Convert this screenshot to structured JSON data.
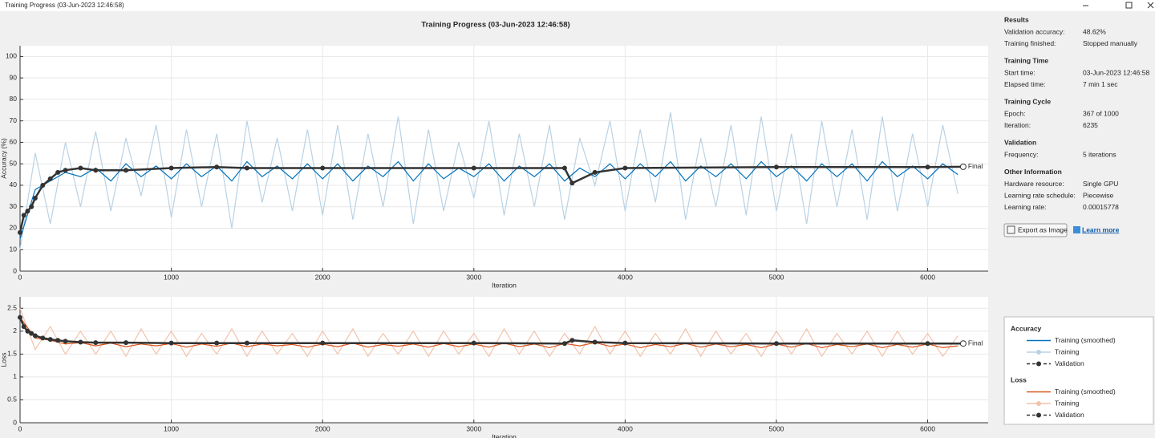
{
  "window": {
    "title": "Training Progress (03-Jun-2023 12:46:58)"
  },
  "header": {
    "title": "Training Progress (03-Jun-2023 12:46:58)"
  },
  "chart_data": [
    {
      "type": "line",
      "xlabel": "Iteration",
      "ylabel": "Accuracy (%)",
      "annotation": "Final",
      "xlim": [
        0,
        6400
      ],
      "xticks": [
        0,
        1000,
        2000,
        3000,
        4000,
        5000,
        6000
      ],
      "ylim": [
        0,
        105
      ],
      "yticks": [
        0,
        10,
        20,
        30,
        40,
        50,
        60,
        70,
        80,
        90,
        100
      ],
      "grid": true,
      "series": [
        {
          "name": "Training",
          "color": "#b9d2e4",
          "x": [
            0,
            100,
            200,
            300,
            400,
            500,
            600,
            700,
            800,
            900,
            1000,
            1100,
            1200,
            1300,
            1400,
            1500,
            1600,
            1700,
            1800,
            1900,
            2000,
            2100,
            2200,
            2300,
            2400,
            2500,
            2600,
            2700,
            2800,
            2900,
            3000,
            3100,
            3200,
            3300,
            3400,
            3500,
            3600,
            3700,
            3800,
            3900,
            4000,
            4100,
            4200,
            4300,
            4400,
            4500,
            4600,
            4700,
            4800,
            4900,
            5000,
            5100,
            5200,
            5300,
            5400,
            5500,
            5600,
            5700,
            5800,
            5900,
            6000,
            6100,
            6200
          ],
          "values": [
            10,
            55,
            22,
            60,
            30,
            65,
            28,
            62,
            35,
            68,
            25,
            66,
            30,
            64,
            20,
            70,
            32,
            62,
            28,
            66,
            26,
            68,
            24,
            64,
            30,
            72,
            22,
            66,
            28,
            60,
            34,
            70,
            26,
            64,
            30,
            68,
            24,
            62,
            40,
            70,
            28,
            66,
            32,
            74,
            24,
            62,
            30,
            68,
            26,
            72,
            28,
            64,
            22,
            70,
            30,
            66,
            24,
            72,
            28,
            64,
            30,
            68,
            36
          ]
        },
        {
          "name": "Training (smoothed)",
          "color": "#0072bd",
          "x": [
            0,
            100,
            200,
            300,
            400,
            500,
            600,
            700,
            800,
            900,
            1000,
            1100,
            1200,
            1300,
            1400,
            1500,
            1600,
            1700,
            1800,
            1900,
            2000,
            2100,
            2200,
            2300,
            2400,
            2500,
            2600,
            2700,
            2800,
            2900,
            3000,
            3100,
            3200,
            3300,
            3400,
            3500,
            3600,
            3700,
            3800,
            3900,
            4000,
            4100,
            4200,
            4300,
            4400,
            4500,
            4600,
            4700,
            4800,
            4900,
            5000,
            5100,
            5200,
            5300,
            5400,
            5500,
            5600,
            5700,
            5800,
            5900,
            6000,
            6100,
            6200
          ],
          "values": [
            15,
            38,
            42,
            46,
            44,
            48,
            42,
            50,
            44,
            49,
            43,
            50,
            44,
            49,
            42,
            51,
            44,
            49,
            43,
            50,
            43,
            50,
            42,
            49,
            44,
            51,
            42,
            50,
            43,
            48,
            44,
            50,
            42,
            49,
            44,
            50,
            42,
            48,
            44,
            50,
            43,
            50,
            44,
            51,
            42,
            49,
            44,
            50,
            43,
            51,
            44,
            49,
            42,
            50,
            44,
            50,
            42,
            51,
            44,
            49,
            43,
            50,
            45
          ]
        },
        {
          "name": "Validation",
          "color": "#333333",
          "marker": "o",
          "x": [
            0,
            25,
            50,
            75,
            100,
            150,
            200,
            250,
            300,
            400,
            500,
            700,
            1000,
            1300,
            1500,
            2000,
            3000,
            3600,
            3650,
            3800,
            4000,
            5000,
            6000,
            6235
          ],
          "values": [
            18,
            26,
            28,
            30,
            34,
            40,
            43,
            46,
            47,
            48,
            47,
            47,
            48,
            48.5,
            48,
            48,
            48,
            48,
            41,
            46,
            48,
            48.5,
            48.5,
            48.62
          ]
        }
      ]
    },
    {
      "type": "line",
      "xlabel": "Iteration",
      "ylabel": "Loss",
      "annotation": "Final",
      "xlim": [
        0,
        6400
      ],
      "xticks": [
        0,
        1000,
        2000,
        3000,
        4000,
        5000,
        6000
      ],
      "ylim": [
        0,
        2.75
      ],
      "yticks": [
        0,
        0.5,
        1,
        1.5,
        2,
        2.5
      ],
      "grid": true,
      "series": [
        {
          "name": "Training",
          "color": "#f2c3ad",
          "x": [
            0,
            100,
            200,
            300,
            400,
            500,
            600,
            700,
            800,
            900,
            1000,
            1100,
            1200,
            1300,
            1400,
            1500,
            1600,
            1700,
            1800,
            1900,
            2000,
            2100,
            2200,
            2300,
            2400,
            2500,
            2600,
            2700,
            2800,
            2900,
            3000,
            3100,
            3200,
            3300,
            3400,
            3500,
            3600,
            3700,
            3800,
            3900,
            4000,
            4100,
            4200,
            4300,
            4400,
            4500,
            4600,
            4700,
            4800,
            4900,
            5000,
            5100,
            5200,
            5300,
            5400,
            5500,
            5600,
            5700,
            5800,
            5900,
            6000,
            6100,
            6200
          ],
          "values": [
            2.5,
            1.6,
            2.1,
            1.5,
            2.0,
            1.5,
            2.0,
            1.45,
            2.05,
            1.5,
            2.0,
            1.45,
            1.95,
            1.5,
            2.05,
            1.45,
            2.0,
            1.5,
            1.95,
            1.45,
            2.0,
            1.5,
            2.05,
            1.45,
            1.95,
            1.5,
            2.0,
            1.45,
            2.0,
            1.5,
            1.95,
            1.45,
            2.05,
            1.5,
            2.0,
            1.45,
            1.95,
            1.5,
            2.1,
            1.5,
            2.0,
            1.45,
            1.95,
            1.5,
            2.05,
            1.45,
            2.0,
            1.5,
            1.95,
            1.45,
            2.0,
            1.5,
            2.05,
            1.45,
            1.95,
            1.5,
            2.0,
            1.45,
            2.0,
            1.5,
            1.95,
            1.45,
            1.9
          ]
        },
        {
          "name": "Training (smoothed)",
          "color": "#d95319",
          "x": [
            0,
            100,
            200,
            300,
            400,
            500,
            600,
            700,
            800,
            900,
            1000,
            1100,
            1200,
            1300,
            1400,
            1500,
            1600,
            1700,
            1800,
            1900,
            2000,
            2100,
            2200,
            2300,
            2400,
            2500,
            2600,
            2700,
            2800,
            2900,
            3000,
            3100,
            3200,
            3300,
            3400,
            3500,
            3600,
            3700,
            3800,
            3900,
            4000,
            4100,
            4200,
            4300,
            4400,
            4500,
            4600,
            4700,
            4800,
            4900,
            5000,
            5100,
            5200,
            5300,
            5400,
            5500,
            5600,
            5700,
            5800,
            5900,
            6000,
            6100,
            6200
          ],
          "values": [
            2.3,
            1.85,
            1.8,
            1.72,
            1.75,
            1.68,
            1.74,
            1.66,
            1.72,
            1.68,
            1.73,
            1.65,
            1.72,
            1.67,
            1.74,
            1.66,
            1.72,
            1.68,
            1.71,
            1.65,
            1.72,
            1.66,
            1.74,
            1.65,
            1.71,
            1.67,
            1.72,
            1.65,
            1.73,
            1.66,
            1.72,
            1.65,
            1.74,
            1.66,
            1.72,
            1.64,
            1.73,
            1.68,
            1.75,
            1.67,
            1.72,
            1.64,
            1.71,
            1.66,
            1.73,
            1.65,
            1.72,
            1.66,
            1.71,
            1.64,
            1.72,
            1.65,
            1.73,
            1.64,
            1.71,
            1.66,
            1.72,
            1.64,
            1.71,
            1.65,
            1.72,
            1.64,
            1.68
          ]
        },
        {
          "name": "Validation",
          "color": "#333333",
          "marker": "o",
          "x": [
            0,
            25,
            50,
            75,
            100,
            150,
            200,
            250,
            300,
            400,
            500,
            700,
            1000,
            1300,
            1500,
            2000,
            3000,
            3600,
            3650,
            3800,
            4000,
            5000,
            6000,
            6235
          ],
          "values": [
            2.3,
            2.1,
            2.0,
            1.95,
            1.9,
            1.85,
            1.82,
            1.8,
            1.78,
            1.76,
            1.75,
            1.75,
            1.74,
            1.74,
            1.74,
            1.74,
            1.74,
            1.73,
            1.8,
            1.76,
            1.74,
            1.73,
            1.73,
            1.73
          ]
        }
      ]
    }
  ],
  "info": {
    "sections": [
      {
        "title": "Results",
        "rows": [
          {
            "label": "Validation accuracy:",
            "value": "48.62%"
          },
          {
            "label": "Training finished:",
            "value": "Stopped manually"
          }
        ]
      },
      {
        "title": "Training Time",
        "rows": [
          {
            "label": "Start time:",
            "value": "03-Jun-2023 12:46:58"
          },
          {
            "label": "Elapsed time:",
            "value": "7 min 1 sec"
          }
        ]
      },
      {
        "title": "Training Cycle",
        "rows": [
          {
            "label": "Epoch:",
            "value": "367 of 1000"
          },
          {
            "label": "Iteration:",
            "value": "6235"
          }
        ]
      },
      {
        "title": "Validation",
        "rows": [
          {
            "label": "Frequency:",
            "value": "5 iterations"
          }
        ]
      },
      {
        "title": "Other Information",
        "rows": [
          {
            "label": "Hardware resource:",
            "value": "Single GPU"
          },
          {
            "label": "Learning rate schedule:",
            "value": "Piecewise"
          },
          {
            "label": "Learning rate:",
            "value": "0.00015778"
          }
        ]
      }
    ]
  },
  "buttons": {
    "export": "Export as Image",
    "learn": "Learn more"
  },
  "legend": {
    "sections": [
      "Accuracy",
      "Loss"
    ]
  }
}
